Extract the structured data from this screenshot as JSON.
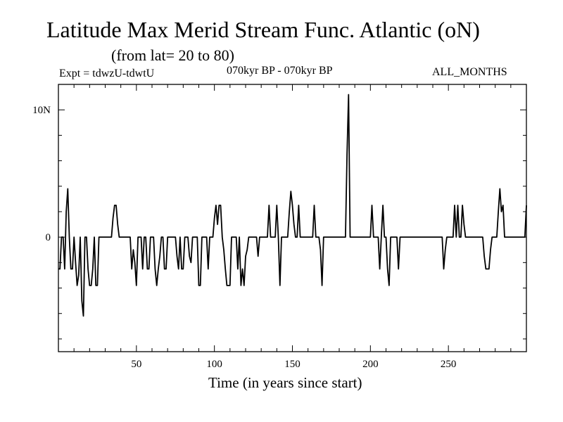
{
  "chart_data": {
    "type": "line",
    "title": "Latitude Max Merid Stream Func. Atlantic (oN)",
    "subtitle": "(from lat= 20 to 80)",
    "experiment": "Expt = tdwzU-tdwtU",
    "period": "070kyr BP - 070kyr BP",
    "months": "ALL_MONTHS",
    "xlabel": "Time (in years since start)",
    "ylabel": "",
    "xlim": [
      0,
      300
    ],
    "ylim": [
      -9,
      12
    ],
    "x_ticks": [
      50,
      100,
      150,
      200,
      250
    ],
    "y_ticks": [
      {
        "value": 10,
        "label": "10N"
      },
      {
        "value": 0,
        "label": "0"
      }
    ],
    "grid": false,
    "series": [
      {
        "values": [
          [
            0,
            -2.5
          ],
          [
            1,
            -2.5
          ],
          [
            2,
            0
          ],
          [
            3,
            0
          ],
          [
            4,
            -2.5
          ],
          [
            5,
            2
          ],
          [
            6,
            3.8
          ],
          [
            7,
            0
          ],
          [
            8,
            -2.5
          ],
          [
            9,
            -2.5
          ],
          [
            10,
            0
          ],
          [
            11,
            -2
          ],
          [
            12,
            -3.8
          ],
          [
            13,
            -3
          ],
          [
            14,
            0
          ],
          [
            15,
            -5
          ],
          [
            16,
            -6.2
          ],
          [
            17,
            0
          ],
          [
            18,
            0
          ],
          [
            19,
            -2.5
          ],
          [
            20,
            -3.8
          ],
          [
            21,
            -3.8
          ],
          [
            22,
            -2.5
          ],
          [
            23,
            0
          ],
          [
            24,
            -3.8
          ],
          [
            25,
            -3.8
          ],
          [
            26,
            0
          ],
          [
            27,
            0
          ],
          [
            28,
            0
          ],
          [
            29,
            0
          ],
          [
            30,
            0
          ],
          [
            31,
            0
          ],
          [
            32,
            0
          ],
          [
            33,
            0
          ],
          [
            34,
            0
          ],
          [
            35,
            1.5
          ],
          [
            36,
            2.5
          ],
          [
            37,
            2.5
          ],
          [
            38,
            1
          ],
          [
            39,
            0
          ],
          [
            40,
            0
          ],
          [
            41,
            0
          ],
          [
            42,
            0
          ],
          [
            43,
            0
          ],
          [
            44,
            0
          ],
          [
            45,
            0
          ],
          [
            46,
            0
          ],
          [
            47,
            -2.5
          ],
          [
            48,
            -1
          ],
          [
            49,
            -2
          ],
          [
            50,
            -3.8
          ],
          [
            51,
            0
          ],
          [
            52,
            0
          ],
          [
            53,
            0
          ],
          [
            54,
            -2.5
          ],
          [
            55,
            0
          ],
          [
            56,
            0
          ],
          [
            57,
            -2.5
          ],
          [
            58,
            -2.5
          ],
          [
            59,
            0
          ],
          [
            60,
            0
          ],
          [
            61,
            0
          ],
          [
            62,
            -2.5
          ],
          [
            63,
            -3.8
          ],
          [
            64,
            -2.5
          ],
          [
            65,
            -1.5
          ],
          [
            66,
            0
          ],
          [
            67,
            0
          ],
          [
            68,
            -2.5
          ],
          [
            69,
            -2.5
          ],
          [
            70,
            0
          ],
          [
            71,
            0
          ],
          [
            72,
            0
          ],
          [
            73,
            0
          ],
          [
            74,
            0
          ],
          [
            75,
            0
          ],
          [
            76,
            -1.5
          ],
          [
            77,
            -2.5
          ],
          [
            78,
            0
          ],
          [
            79,
            -2.5
          ],
          [
            80,
            -2.5
          ],
          [
            81,
            0
          ],
          [
            82,
            0
          ],
          [
            83,
            0
          ],
          [
            84,
            -1.5
          ],
          [
            85,
            -2
          ],
          [
            86,
            0
          ],
          [
            87,
            0
          ],
          [
            88,
            0
          ],
          [
            89,
            0
          ],
          [
            90,
            -3.8
          ],
          [
            91,
            -3.8
          ],
          [
            92,
            0
          ],
          [
            93,
            0
          ],
          [
            94,
            0
          ],
          [
            95,
            0
          ],
          [
            96,
            -2.5
          ],
          [
            97,
            0
          ],
          [
            98,
            0
          ],
          [
            99,
            0
          ],
          [
            100,
            1.5
          ],
          [
            101,
            2.5
          ],
          [
            102,
            1
          ],
          [
            103,
            2.5
          ],
          [
            104,
            2.5
          ],
          [
            105,
            0
          ],
          [
            106,
            -1
          ],
          [
            107,
            -2.5
          ],
          [
            108,
            -3.8
          ],
          [
            109,
            -3.8
          ],
          [
            110,
            -3.8
          ],
          [
            111,
            0
          ],
          [
            112,
            0
          ],
          [
            113,
            0
          ],
          [
            114,
            0
          ],
          [
            115,
            -2.5
          ],
          [
            116,
            0
          ],
          [
            117,
            -3.8
          ],
          [
            118,
            -2.5
          ],
          [
            119,
            -3.8
          ],
          [
            120,
            -1.5
          ],
          [
            121,
            -1
          ],
          [
            122,
            0
          ],
          [
            123,
            0
          ],
          [
            124,
            0
          ],
          [
            125,
            0
          ],
          [
            126,
            0
          ],
          [
            127,
            0
          ],
          [
            128,
            -1.5
          ],
          [
            129,
            0
          ],
          [
            130,
            0
          ],
          [
            131,
            0
          ],
          [
            132,
            0
          ],
          [
            133,
            0
          ],
          [
            134,
            0
          ],
          [
            135,
            2.5
          ],
          [
            136,
            0
          ],
          [
            137,
            0
          ],
          [
            138,
            0
          ],
          [
            139,
            0
          ],
          [
            140,
            2.5
          ],
          [
            141,
            0
          ],
          [
            142,
            -3.8
          ],
          [
            143,
            0
          ],
          [
            144,
            0
          ],
          [
            145,
            0
          ],
          [
            146,
            0
          ],
          [
            147,
            0
          ],
          [
            148,
            2
          ],
          [
            149,
            3.6
          ],
          [
            150,
            2.5
          ],
          [
            151,
            1
          ],
          [
            152,
            0
          ],
          [
            153,
            0
          ],
          [
            154,
            2.5
          ],
          [
            155,
            0
          ],
          [
            156,
            0
          ],
          [
            157,
            0
          ],
          [
            158,
            0
          ],
          [
            159,
            0
          ],
          [
            160,
            0
          ],
          [
            161,
            0
          ],
          [
            162,
            0
          ],
          [
            163,
            0
          ],
          [
            164,
            2.5
          ],
          [
            165,
            0
          ],
          [
            166,
            0
          ],
          [
            167,
            0
          ],
          [
            168,
            -1
          ],
          [
            169,
            -3.8
          ],
          [
            170,
            0
          ],
          [
            171,
            0
          ],
          [
            172,
            0
          ],
          [
            173,
            0
          ],
          [
            174,
            0
          ],
          [
            175,
            0
          ],
          [
            176,
            0
          ],
          [
            177,
            0
          ],
          [
            178,
            0
          ],
          [
            179,
            0
          ],
          [
            180,
            0
          ],
          [
            181,
            0
          ],
          [
            182,
            0
          ],
          [
            183,
            0
          ],
          [
            184,
            0
          ],
          [
            185,
            6.5
          ],
          [
            186,
            11.2
          ],
          [
            187,
            0
          ],
          [
            188,
            0
          ],
          [
            189,
            0
          ],
          [
            190,
            0
          ],
          [
            191,
            0
          ],
          [
            192,
            0
          ],
          [
            193,
            0
          ],
          [
            194,
            0
          ],
          [
            195,
            0
          ],
          [
            196,
            0
          ],
          [
            197,
            0
          ],
          [
            198,
            0
          ],
          [
            199,
            0
          ],
          [
            200,
            0
          ],
          [
            201,
            2.5
          ],
          [
            202,
            0
          ],
          [
            203,
            0
          ],
          [
            204,
            0
          ],
          [
            205,
            0
          ],
          [
            206,
            -2.5
          ],
          [
            207,
            0
          ],
          [
            208,
            2.5
          ],
          [
            209,
            0
          ],
          [
            210,
            0
          ],
          [
            211,
            -2.5
          ],
          [
            212,
            -3.8
          ],
          [
            213,
            0
          ],
          [
            214,
            0
          ],
          [
            215,
            0
          ],
          [
            216,
            0
          ],
          [
            217,
            0
          ],
          [
            218,
            -2.5
          ],
          [
            219,
            0
          ],
          [
            220,
            0
          ],
          [
            221,
            0
          ],
          [
            222,
            0
          ],
          [
            223,
            0
          ],
          [
            224,
            0
          ],
          [
            225,
            0
          ],
          [
            226,
            0
          ],
          [
            227,
            0
          ],
          [
            228,
            0
          ],
          [
            229,
            0
          ],
          [
            230,
            0
          ],
          [
            231,
            0
          ],
          [
            232,
            0
          ],
          [
            233,
            0
          ],
          [
            234,
            0
          ],
          [
            235,
            0
          ],
          [
            236,
            0
          ],
          [
            237,
            0
          ],
          [
            238,
            0
          ],
          [
            239,
            0
          ],
          [
            240,
            0
          ],
          [
            241,
            0
          ],
          [
            242,
            0
          ],
          [
            243,
            0
          ],
          [
            244,
            0
          ],
          [
            245,
            0
          ],
          [
            246,
            0
          ],
          [
            247,
            -2.5
          ],
          [
            248,
            -1
          ],
          [
            249,
            0
          ],
          [
            250,
            0
          ],
          [
            251,
            0
          ],
          [
            252,
            0
          ],
          [
            253,
            0
          ],
          [
            254,
            2.5
          ],
          [
            255,
            0
          ],
          [
            256,
            2.5
          ],
          [
            257,
            0
          ],
          [
            258,
            0
          ],
          [
            259,
            2.5
          ],
          [
            260,
            1
          ],
          [
            261,
            0
          ],
          [
            262,
            0
          ],
          [
            263,
            0
          ],
          [
            264,
            0
          ],
          [
            265,
            0
          ],
          [
            266,
            0
          ],
          [
            267,
            0
          ],
          [
            268,
            0
          ],
          [
            269,
            0
          ],
          [
            270,
            0
          ],
          [
            271,
            0
          ],
          [
            272,
            0
          ],
          [
            273,
            -1.5
          ],
          [
            274,
            -2.5
          ],
          [
            275,
            -2.5
          ],
          [
            276,
            -2.5
          ],
          [
            277,
            -1
          ],
          [
            278,
            0
          ],
          [
            279,
            0
          ],
          [
            280,
            0
          ],
          [
            281,
            0
          ],
          [
            282,
            2
          ],
          [
            283,
            3.8
          ],
          [
            284,
            2
          ],
          [
            285,
            2.5
          ],
          [
            286,
            0
          ],
          [
            287,
            0
          ],
          [
            288,
            0
          ],
          [
            289,
            0
          ],
          [
            290,
            0
          ],
          [
            291,
            0
          ],
          [
            292,
            0
          ],
          [
            293,
            0
          ],
          [
            294,
            0
          ],
          [
            295,
            0
          ],
          [
            296,
            0
          ],
          [
            297,
            0
          ],
          [
            298,
            0
          ],
          [
            299,
            0
          ],
          [
            300,
            2.5
          ]
        ]
      }
    ]
  }
}
